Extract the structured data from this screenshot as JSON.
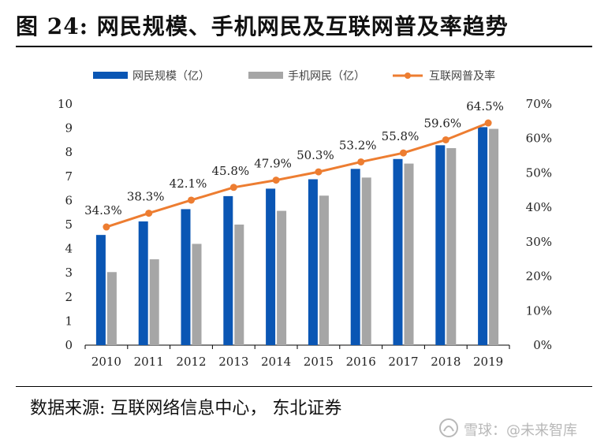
{
  "title": "图  24:  网民规模、手机网民及互联网普及率趋势",
  "source": "数据来源:  互联网络信息中心，  东北证券",
  "watermark": "雪球：@未来智库",
  "colors": {
    "bar1": "#0a56b4",
    "bar2": "#a6a6a6",
    "line": "#ed7d31",
    "axis": "#000000"
  },
  "chart_data": {
    "type": "bar",
    "categories": [
      "2010",
      "2011",
      "2012",
      "2013",
      "2014",
      "2015",
      "2016",
      "2017",
      "2018",
      "2019"
    ],
    "series": [
      {
        "name": "网民规模（亿）",
        "type": "bar",
        "axis": "left",
        "values": [
          4.57,
          5.13,
          5.64,
          6.18,
          6.49,
          6.88,
          7.31,
          7.72,
          8.29,
          9.04
        ]
      },
      {
        "name": "手机网民（亿）",
        "type": "bar",
        "axis": "left",
        "values": [
          3.03,
          3.56,
          4.2,
          5.0,
          5.57,
          6.2,
          6.95,
          7.53,
          8.17,
          8.97
        ]
      },
      {
        "name": "互联网普及率",
        "type": "line",
        "axis": "right",
        "values": [
          34.3,
          38.3,
          42.1,
          45.8,
          47.9,
          50.3,
          53.2,
          55.8,
          59.6,
          64.5
        ],
        "labels": [
          "34.3%",
          "38.3%",
          "42.1%",
          "45.8%",
          "47.9%",
          "50.3%",
          "53.2%",
          "55.8%",
          "59.6%",
          "64.5%"
        ]
      }
    ],
    "ylim": [
      0,
      10
    ],
    "yticks": [
      "0",
      "1",
      "2",
      "3",
      "4",
      "5",
      "6",
      "7",
      "8",
      "9",
      "10"
    ],
    "y2lim": [
      0,
      70
    ],
    "y2ticks": [
      "0%",
      "10%",
      "20%",
      "30%",
      "40%",
      "50%",
      "60%",
      "70%"
    ],
    "legend_position": "top",
    "grid": false
  }
}
